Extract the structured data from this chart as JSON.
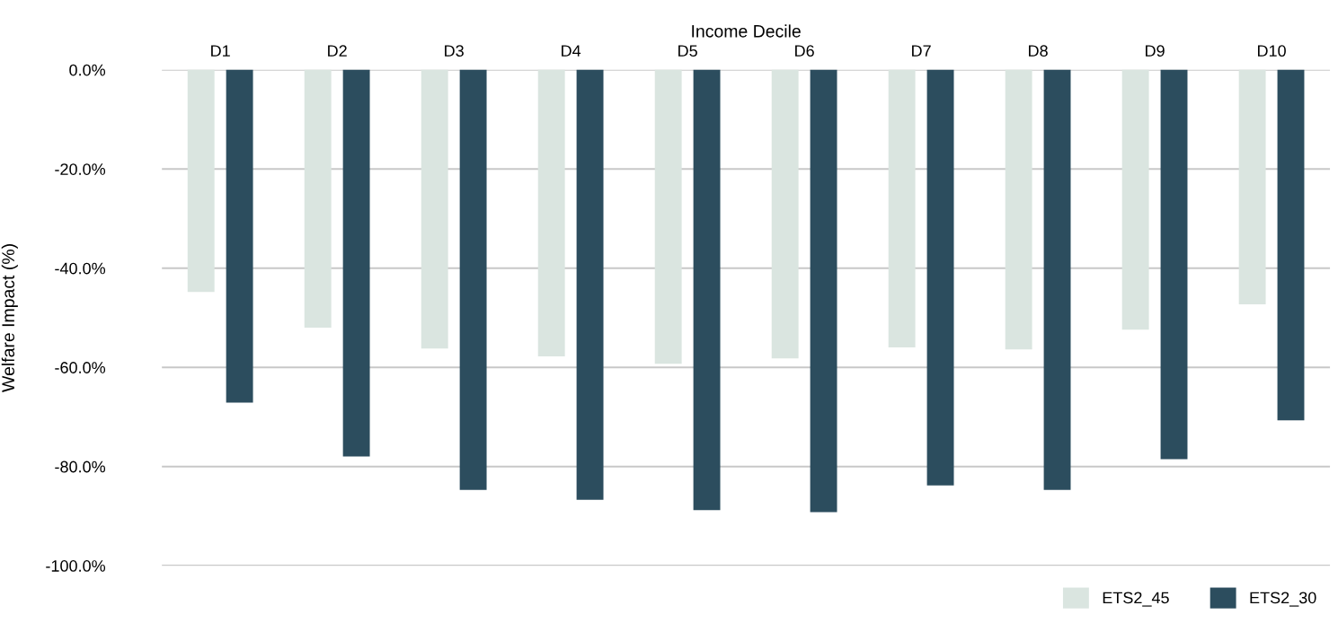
{
  "chart_data": {
    "type": "bar",
    "xlabel": "Income Decile",
    "ylabel": "Welfare Impact (%)",
    "categories": [
      "D1",
      "D2",
      "D3",
      "D4",
      "D5",
      "D6",
      "D7",
      "D8",
      "D9",
      "D10"
    ],
    "series": [
      {
        "name": "ETS2_45",
        "color": "#dae5e0",
        "values": [
          -44.8,
          -52.0,
          -56.2,
          -57.8,
          -59.3,
          -58.2,
          -56.0,
          -56.4,
          -52.4,
          -47.3
        ]
      },
      {
        "name": "ETS2_30",
        "color": "#2c4d5e",
        "values": [
          -67.1,
          -78.0,
          -84.7,
          -86.7,
          -88.8,
          -89.2,
          -83.8,
          -84.7,
          -78.5,
          -70.7
        ]
      }
    ],
    "ylim": [
      -100,
      0
    ],
    "yticks": [
      {
        "value": 0,
        "label": "0.0%"
      },
      {
        "value": -20,
        "label": "-20.0%"
      },
      {
        "value": -40,
        "label": "-40.0%"
      },
      {
        "value": -60,
        "label": "-60.0%"
      },
      {
        "value": -80,
        "label": "-80.0%"
      },
      {
        "value": -100,
        "label": "-100.0%"
      }
    ],
    "grid": "y",
    "legend": "bottom right"
  }
}
